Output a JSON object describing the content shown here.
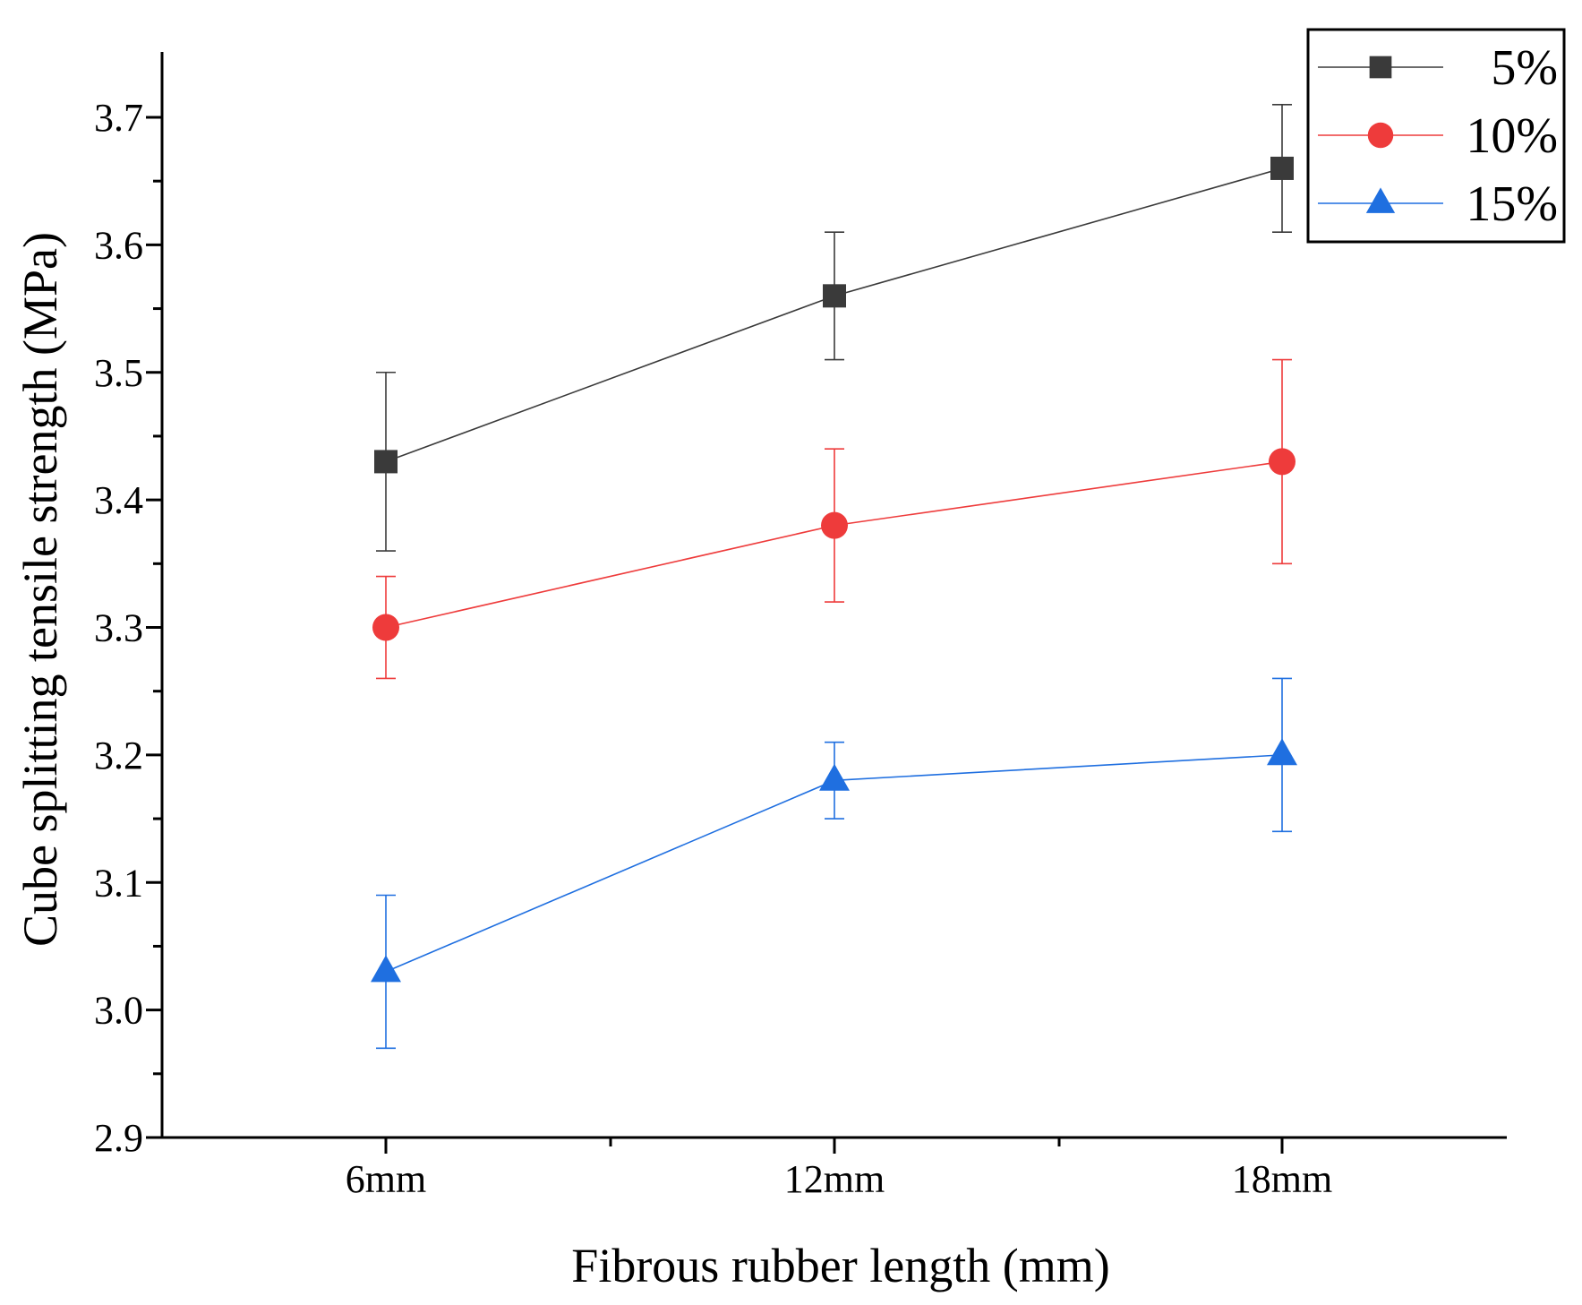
{
  "chart_data": {
    "type": "line",
    "title": "",
    "xlabel": "Fibrous rubber length (mm)",
    "ylabel": "Cube splitting tensile strength (MPa)",
    "categories": [
      "6mm",
      "12mm",
      "18mm"
    ],
    "ylim": [
      2.9,
      3.75
    ],
    "yticks": [
      "2.9",
      "3.0",
      "3.1",
      "3.2",
      "3.3",
      "3.4",
      "3.5",
      "3.6",
      "3.7"
    ],
    "legend_position": "top-right",
    "series": [
      {
        "name": "5%",
        "marker": "square",
        "color": "#3a3a3a",
        "values": [
          3.43,
          3.56,
          3.66
        ],
        "error": [
          0.07,
          0.05,
          0.05
        ]
      },
      {
        "name": "10%",
        "marker": "circle",
        "color": "#ee3b3b",
        "values": [
          3.3,
          3.38,
          3.43
        ],
        "error": [
          0.04,
          0.06,
          0.08
        ]
      },
      {
        "name": "15%",
        "marker": "triangle",
        "color": "#1f6fe0",
        "values": [
          3.03,
          3.18,
          3.2
        ],
        "error": [
          0.06,
          0.03,
          0.06
        ]
      }
    ]
  }
}
